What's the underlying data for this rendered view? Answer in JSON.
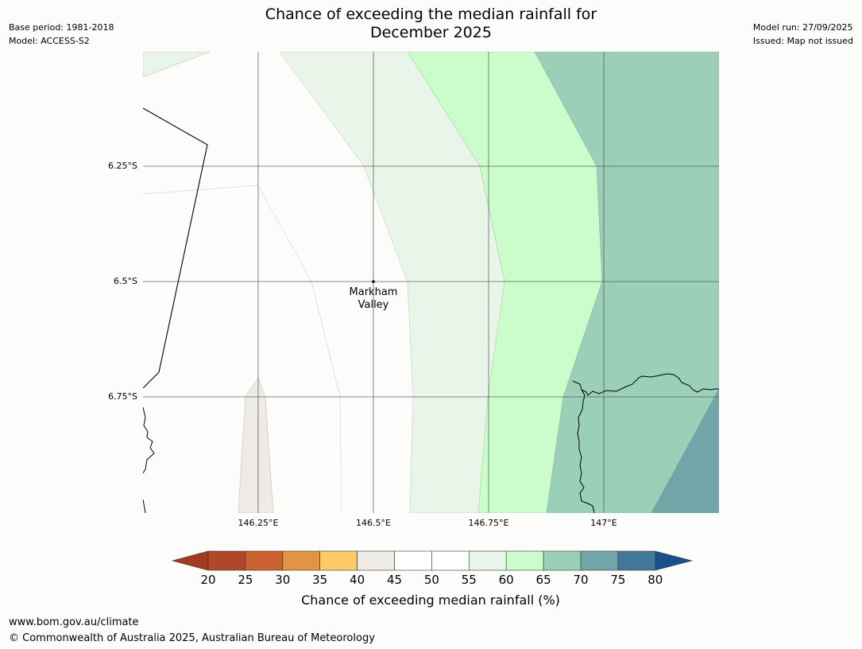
{
  "header": {
    "title_line1": "Chance of exceeding the median rainfall for",
    "title_line2": "December 2025",
    "base_period": "Base period: 1981-2018",
    "model": "Model: ACCESS-S2",
    "model_run": "Model run: 27/09/2025",
    "issued": "Issued: Map not issued"
  },
  "map": {
    "lat_labels": [
      "6.25°S",
      "6.5°S",
      "6.75°S"
    ],
    "lon_labels": [
      "146.25°E",
      "146.5°E",
      "146.75°E",
      "147°E"
    ],
    "place": {
      "name_line1": "Markham",
      "name_line2": "Valley"
    }
  },
  "legend": {
    "ticks": [
      "20",
      "25",
      "30",
      "35",
      "40",
      "45",
      "50",
      "55",
      "60",
      "65",
      "70",
      "75",
      "80"
    ],
    "colors": [
      "#a23a24",
      "#b1462a",
      "#cc6231",
      "#e29344",
      "#fdca65",
      "#eeeae6",
      "#ffffff",
      "#ffffff",
      "#eaf5ea",
      "#cbfccb",
      "#9ccfb8",
      "#71a6a8",
      "#42789b",
      "#1a4f8a"
    ],
    "label": "Chance of exceeding median rainfall (%)"
  },
  "footer": {
    "url": "www.bom.gov.au/climate",
    "copyright": "© Commonwealth of Australia 2025, Australian Bureau of Meteorology"
  }
}
